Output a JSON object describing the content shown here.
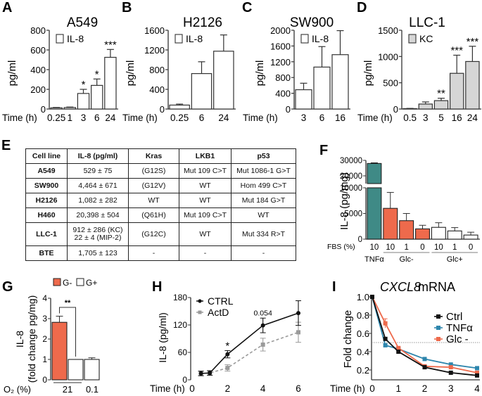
{
  "panel_letters": [
    "A",
    "B",
    "C",
    "D",
    "E",
    "F",
    "G",
    "H",
    "I"
  ],
  "colors": {
    "teal": "#3f8a86",
    "orange": "#ee6a4c",
    "light_gray": "#d6d6d6",
    "dark_gray_line": "#888888",
    "tnf_blue": "#2e86ad",
    "black": "#111111"
  },
  "chart_data": [
    {
      "panel": "A",
      "type": "bar",
      "title": "A549",
      "ylabel": "pg/ml",
      "xlabel": "Time (h)",
      "legend": "IL-8",
      "legend_position": "top-left",
      "bar_fill": "white",
      "categories": [
        "0.25",
        "1",
        "3",
        "6",
        "24"
      ],
      "values": [
        12,
        15,
        158,
        240,
        525
      ],
      "errors": [
        4,
        5,
        42,
        65,
        80
      ],
      "significance": [
        "",
        "",
        "*",
        "*",
        "***"
      ],
      "ylim": [
        0,
        800
      ],
      "yticks": [
        "0",
        "200",
        "400",
        "600",
        "800"
      ]
    },
    {
      "panel": "B",
      "type": "bar",
      "title": "H2126",
      "ylabel": "pg/ml",
      "xlabel": "Time (h)",
      "legend": "IL-8",
      "legend_position": "top-left",
      "bar_fill": "white",
      "categories": [
        "0.25",
        "6",
        "24"
      ],
      "values": [
        80,
        720,
        1175
      ],
      "errors": [
        20,
        240,
        330
      ],
      "significance": [
        "",
        "",
        ""
      ],
      "ylim": [
        0,
        1600
      ],
      "yticks": [
        "0",
        "400",
        "800",
        "1200",
        "1600"
      ]
    },
    {
      "panel": "C",
      "type": "bar",
      "title": "SW900",
      "ylabel": "pg/ml",
      "xlabel": "Time (h)",
      "legend": "IL-8",
      "legend_position": "top-left",
      "bar_fill": "white",
      "categories": [
        "3",
        "6",
        "16"
      ],
      "values": [
        490,
        1065,
        1380
      ],
      "errors": [
        165,
        520,
        610
      ],
      "significance": [
        "",
        "",
        ""
      ],
      "ylim": [
        0,
        2000
      ],
      "yticks": [
        "0",
        "400",
        "800",
        "1200",
        "1600",
        "2000"
      ]
    },
    {
      "panel": "D",
      "type": "bar",
      "title": "LLC-1",
      "ylabel": "pg/ml",
      "xlabel": "Time (h)",
      "legend": "KC",
      "legend_position": "top-left",
      "bar_fill": "gray",
      "categories": [
        "0.5",
        "3",
        "5",
        "16",
        "24"
      ],
      "values": [
        8,
        95,
        160,
        680,
        905
      ],
      "errors": [
        4,
        40,
        45,
        345,
        290
      ],
      "significance": [
        "",
        "",
        "**",
        "***",
        "***"
      ],
      "ylim": [
        0,
        1500
      ],
      "yticks": [
        "0",
        "500",
        "1000",
        "1500"
      ]
    },
    {
      "panel": "E",
      "type": "table",
      "columns": [
        "Cell line",
        "IL-8 (pg/ml)",
        "Kras",
        "LKB1",
        "p53"
      ],
      "rows": [
        [
          "A549",
          "529 ± 75",
          "(G12S)",
          "Mut 109 C>T",
          "Mut 1086-1 G>T"
        ],
        [
          "SW900",
          "4,464 ± 671",
          "(G12V)",
          "WT",
          "Hom 499 C>T"
        ],
        [
          "H2126",
          "1,082 ± 282",
          "WT",
          "WT",
          "Mut 184 G>T"
        ],
        [
          "H460",
          "20,398 ± 504",
          "(Q61H)",
          "Mut 109 C>T",
          "WT"
        ],
        [
          "LLC-1",
          "912 ± 286 (KC)",
          "(G12C)",
          "WT",
          "Mut 334 R>T"
        ],
        [
          "BTE",
          "1,705 ± 123",
          "-",
          "-",
          "-"
        ]
      ],
      "extra_line": {
        "row": 4,
        "col": 1,
        "text": "22 ± 4 (MIP-2)"
      }
    },
    {
      "panel": "F",
      "type": "bar",
      "ylabel": "IL-8 (pg/mg)",
      "xlabel": "FBS (%)",
      "broken_axis": {
        "lower": [
          0,
          10000
        ],
        "upper": [
          15000,
          30000
        ]
      },
      "yticks_lower": [
        "0",
        "5000",
        "10000"
      ],
      "yticks_upper": [
        "20000",
        "30000"
      ],
      "categories": [
        "10",
        "10",
        "1",
        "0",
        "10",
        "1",
        "0"
      ],
      "groups": [
        {
          "label": "TNFα",
          "span": [
            0,
            0
          ]
        },
        {
          "label": "Glc-",
          "span": [
            1,
            3
          ]
        },
        {
          "label": "Glc+",
          "span": [
            4,
            6
          ]
        }
      ],
      "values": [
        28000,
        6000,
        3600,
        2000,
        2300,
        1600,
        800
      ],
      "errors": [
        400,
        3100,
        1400,
        700,
        900,
        650,
        550
      ],
      "fills": [
        "teal",
        "orange",
        "orange",
        "orange",
        "white",
        "white",
        "white"
      ]
    },
    {
      "panel": "G",
      "type": "bar",
      "ylabel": "IL-8 (fold change pg/mg)",
      "xlabel": "O2 (%)",
      "legend": [
        "G-",
        "G+"
      ],
      "legend_position": "top",
      "categories": [
        "21",
        "21",
        "0.1"
      ],
      "group_labels": [
        "21",
        "0.1"
      ],
      "values": [
        2.82,
        1.0,
        1.0
      ],
      "errors": [
        0.3,
        0,
        0.08
      ],
      "fills": [
        "orange",
        "white",
        "white"
      ],
      "significance": {
        "between": [
          0,
          1
        ],
        "label": "**"
      },
      "ylim": [
        0,
        4
      ],
      "yticks": [
        "0",
        "1",
        "2",
        "3",
        "4"
      ]
    },
    {
      "panel": "H",
      "type": "line",
      "ylabel": "IL-8 (pg/ml)",
      "xlabel": "Time (h)",
      "x": [
        0.5,
        1,
        2,
        4,
        6
      ],
      "series": [
        {
          "name": "CTRL",
          "values": [
            14,
            15,
            56,
            119,
            146
          ],
          "errors": [
            5,
            5,
            8,
            16,
            27
          ],
          "style": "solid",
          "marker": "circle"
        },
        {
          "name": "ActD",
          "values": [
            14,
            15,
            26,
            77,
            104
          ],
          "errors": [
            5,
            5,
            7,
            14,
            22
          ],
          "style": "dashed",
          "marker": "square"
        }
      ],
      "annotations": [
        {
          "x": 2,
          "text": "*"
        },
        {
          "x": 4,
          "text": "0.054"
        }
      ],
      "xlim": [
        0,
        6
      ],
      "ylim": [
        0,
        180
      ],
      "xticks": [
        "0",
        "2",
        "4",
        "6"
      ],
      "yticks": [
        "0",
        "60",
        "120",
        "180"
      ],
      "legend_position": "top-left"
    },
    {
      "panel": "I",
      "type": "line",
      "title": "CXCL8 mRNA",
      "title_italic_part": "CXCL8",
      "ylabel": "Fold change",
      "xlabel": "Time (h)",
      "x": [
        0,
        0.5,
        1,
        2,
        3,
        4
      ],
      "series": [
        {
          "name": "Ctrl",
          "values": [
            1.0,
            0.54,
            0.4,
            0.23,
            0.17,
            0.14
          ],
          "color": "black"
        },
        {
          "name": "TNFα",
          "values": [
            1.0,
            0.47,
            0.43,
            0.32,
            0.26,
            0.22
          ],
          "color": "tnf_blue"
        },
        {
          "name": "Glc -",
          "values": [
            1.0,
            0.71,
            0.44,
            0.24,
            0.23,
            0.17
          ],
          "color": "orange"
        }
      ],
      "reference_line": 0.5,
      "xlim": [
        0,
        4
      ],
      "ylim": [
        0.1,
        1.0
      ],
      "xticks": [
        "0",
        "1",
        "2",
        "3",
        "4"
      ],
      "yticks": [
        "0.2",
        "0.4",
        "0.6",
        "0.8",
        "1.0"
      ],
      "legend_position": "right"
    }
  ]
}
